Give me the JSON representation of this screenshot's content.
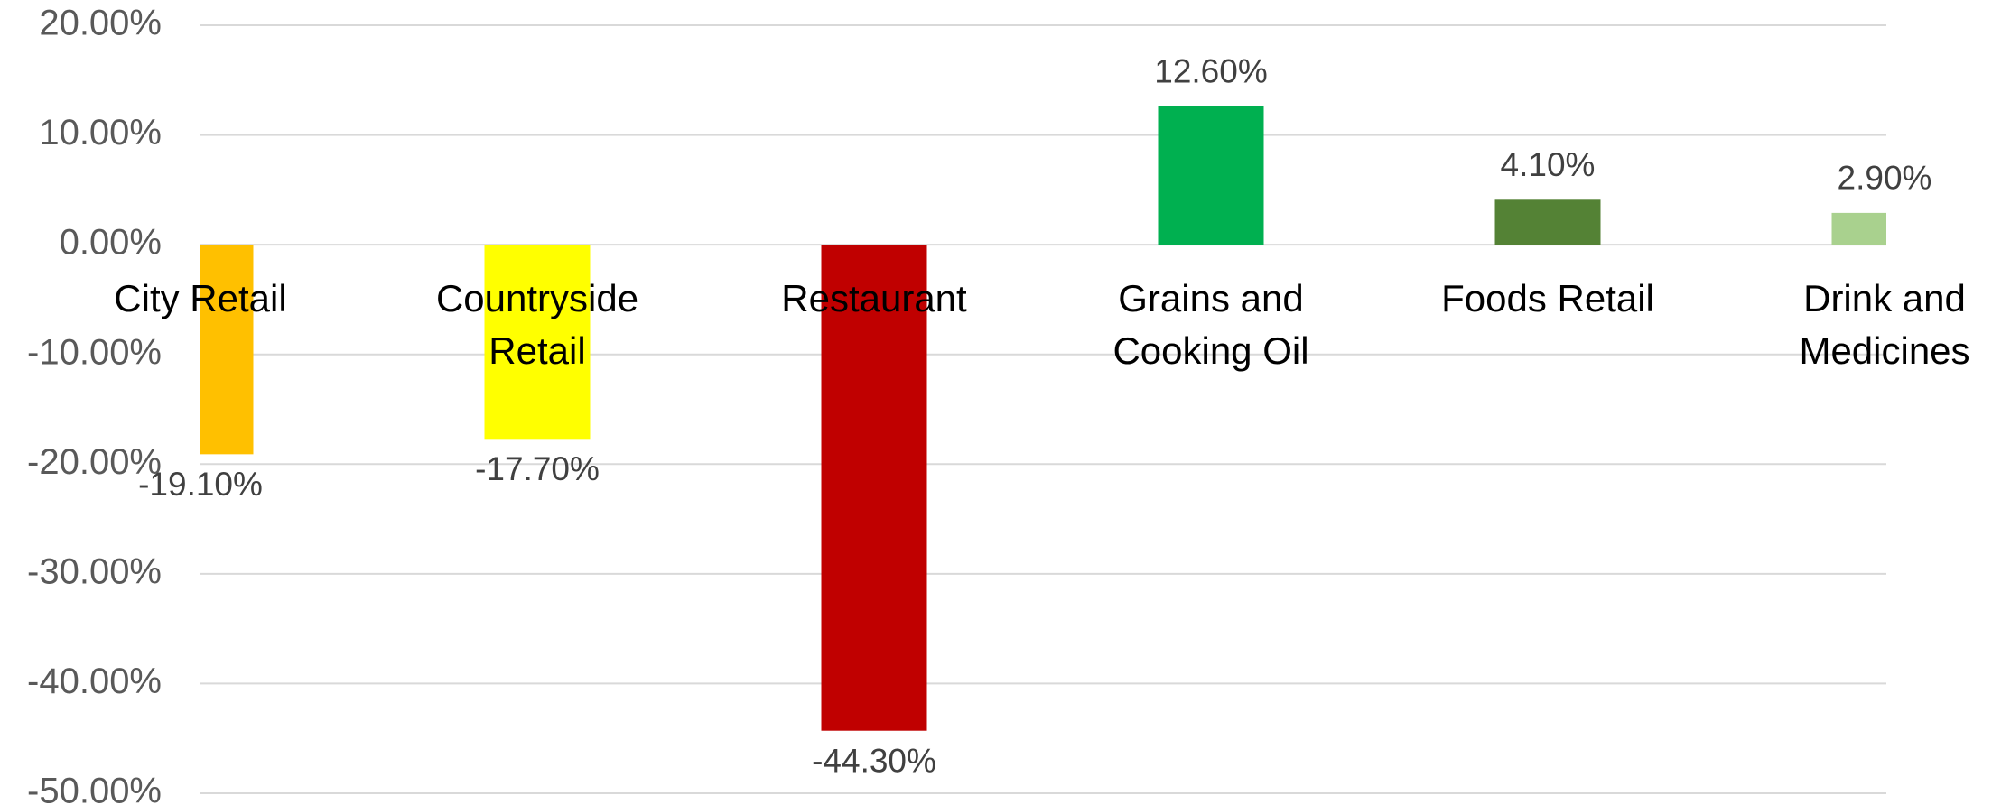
{
  "chart_data": {
    "type": "bar",
    "categories": [
      [
        "City Retail"
      ],
      [
        "Countryside",
        "Retail"
      ],
      [
        "Restaurant"
      ],
      [
        "Grains and",
        "Cooking Oil"
      ],
      [
        "Foods Retail"
      ],
      [
        "Drink and",
        "Medicines"
      ]
    ],
    "values": [
      -19.1,
      -17.7,
      -44.3,
      12.6,
      4.1,
      2.9
    ],
    "value_labels": [
      "-19.10%",
      "-17.70%",
      "-44.30%",
      "12.60%",
      "4.10%",
      "2.90%"
    ],
    "colors": [
      "#FFC000",
      "#FFFF00",
      "#C00000",
      "#00B050",
      "#548235",
      "#A9D18E"
    ],
    "ylim": [
      -50,
      20
    ],
    "yticks": [
      {
        "value": 20,
        "label": "20.00%"
      },
      {
        "value": 10,
        "label": "10.00%"
      },
      {
        "value": 0,
        "label": "0.00%"
      },
      {
        "value": -10,
        "label": "-10.00%"
      },
      {
        "value": -20,
        "label": "-20.00%"
      },
      {
        "value": -30,
        "label": "-30.00%"
      },
      {
        "value": -40,
        "label": "-40.00%"
      },
      {
        "value": -50,
        "label": "-50.00%"
      }
    ],
    "grid": true
  }
}
